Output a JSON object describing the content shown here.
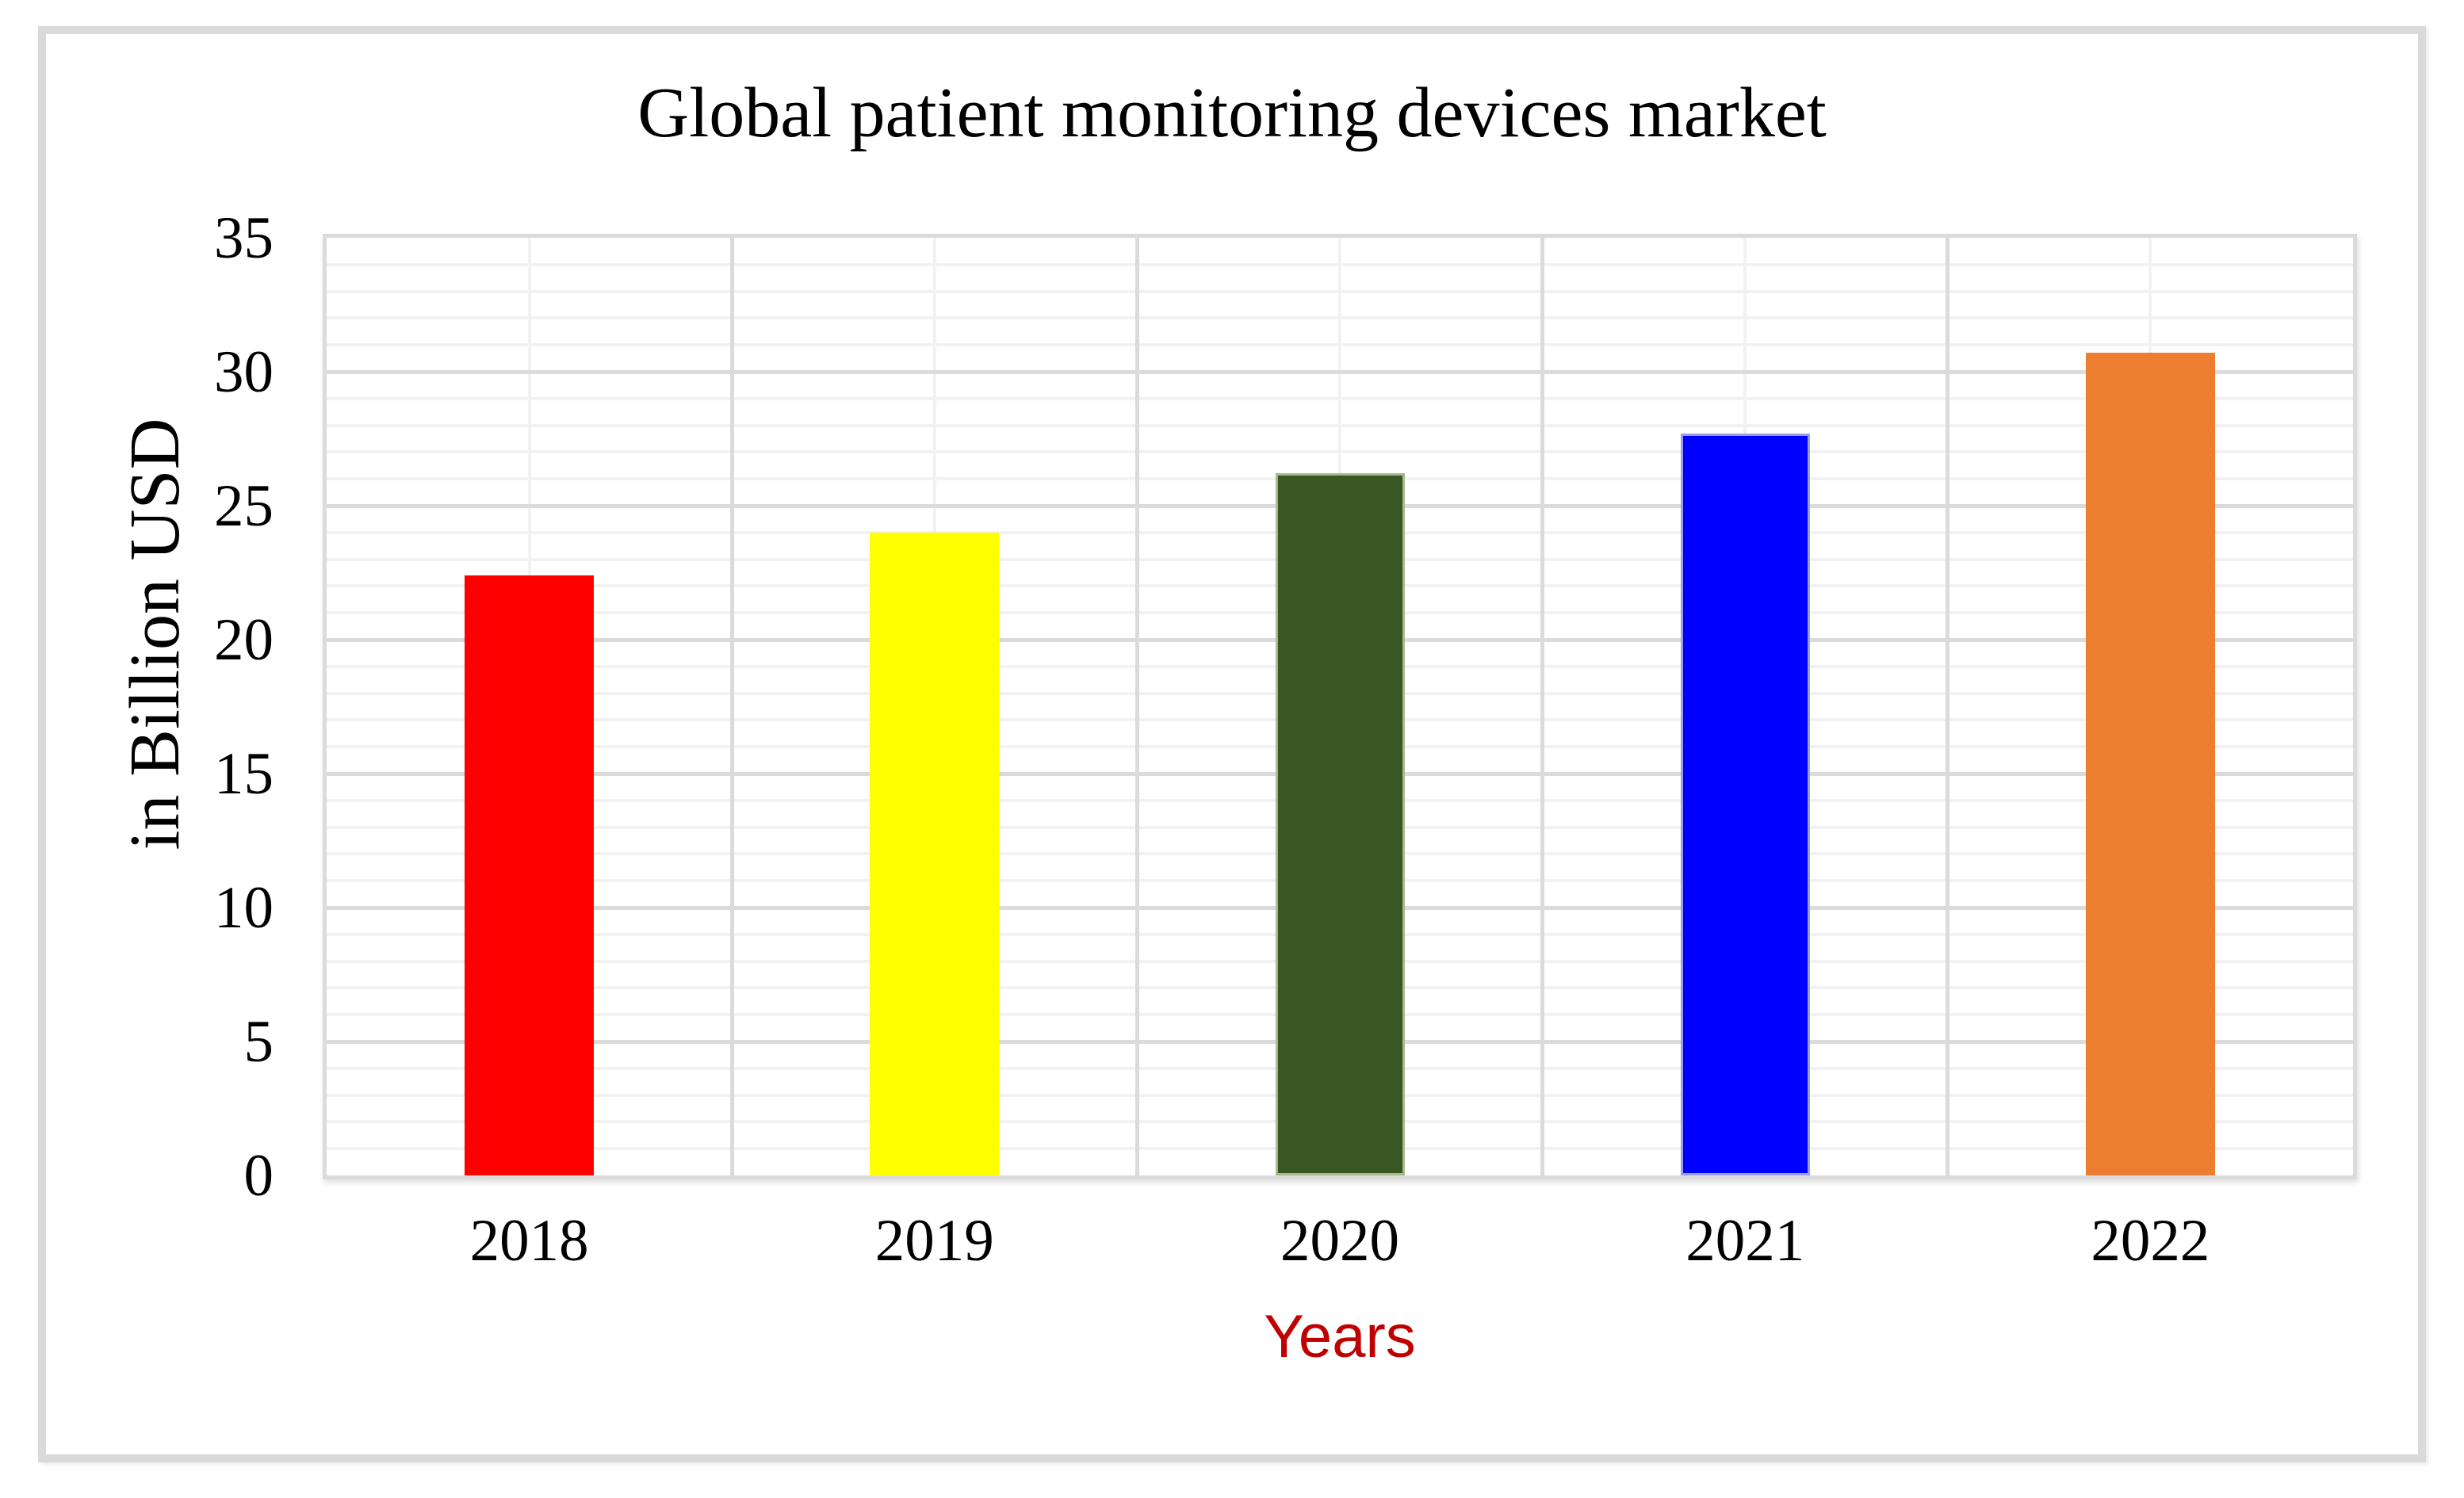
{
  "chart_data": {
    "type": "bar",
    "title": "Global patient monitoring devices market",
    "xlabel": "Years",
    "ylabel": "in Billion USD",
    "categories": [
      "2018",
      "2019",
      "2020",
      "2021",
      "2022"
    ],
    "values": [
      22.4,
      24.0,
      26.2,
      27.7,
      30.7
    ],
    "series": [
      {
        "name": "Global patient monitoring devices market (in Billion USD)",
        "values": [
          22.4,
          24.0,
          26.2,
          27.7,
          30.7
        ]
      }
    ],
    "bar_colors": [
      "#FF0000",
      "#FFFF00",
      "#385723",
      "#0000FF",
      "#ED7D31"
    ],
    "bar_edge_colors": [
      "none",
      "none",
      "#A8BA8E",
      "#9B9BF0",
      "none"
    ],
    "ylim": [
      0,
      35
    ],
    "yticks": [
      0,
      5,
      10,
      15,
      20,
      25,
      30,
      35
    ],
    "ytick_step": 5,
    "minor_grid_step": 1,
    "grid": true,
    "legend": "none",
    "colors": {
      "background": "#FFFFFF",
      "frame_border": "#D9D9D9",
      "plot_border": "#DBDBDB",
      "major_grid": "#DBDBDB",
      "minor_grid": "#F2F2F2",
      "text": "#000000",
      "xlabel_color": "#C00000"
    }
  }
}
